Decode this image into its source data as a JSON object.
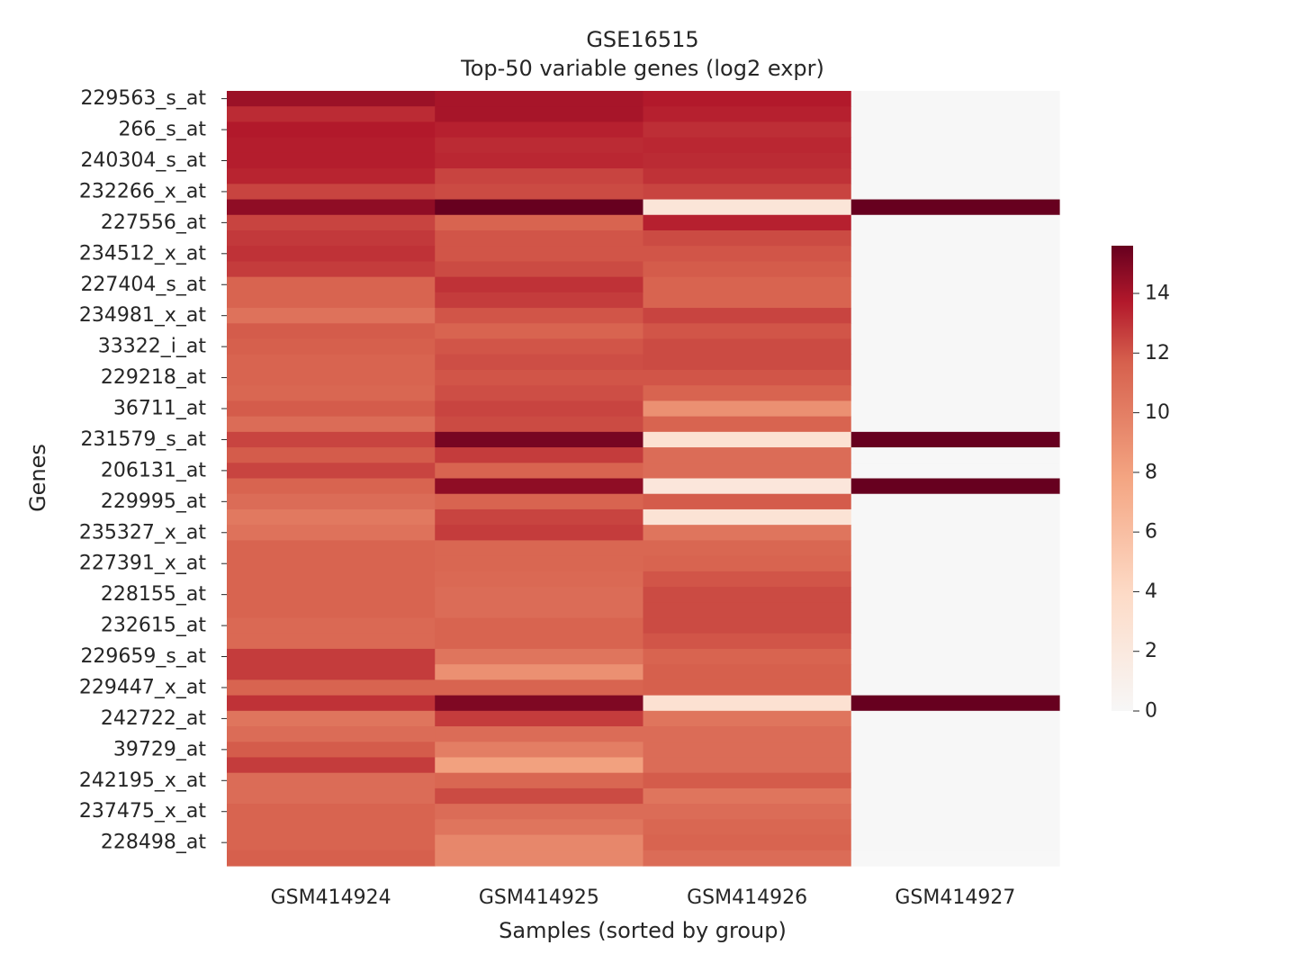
{
  "chart_data": {
    "type": "heatmap",
    "title": "GSE16515",
    "subtitle": "Top-50 variable genes (log2 expr)",
    "xlabel": "Samples (sorted by group)",
    "ylabel": "Genes",
    "columns": [
      "GSM414924",
      "GSM414925",
      "GSM414926",
      "GSM414927"
    ],
    "row_tick_labels": [
      "229563_s_at",
      "266_s_at",
      "240304_s_at",
      "232266_x_at",
      "227556_at",
      "234512_x_at",
      "227404_s_at",
      "234981_x_at",
      "33322_i_at",
      "229218_at",
      "36711_at",
      "231579_s_at",
      "206131_at",
      "229995_at",
      "235327_x_at",
      "227391_x_at",
      "228155_at",
      "232615_at",
      "229659_s_at",
      "229447_x_at",
      "242722_at",
      "39729_at",
      "242195_x_at",
      "237475_x_at",
      "228498_at"
    ],
    "row_count": 50,
    "values": [
      [
        14.3,
        14.0,
        13.7,
        0.0
      ],
      [
        13.2,
        14.0,
        13.5,
        0.0
      ],
      [
        13.7,
        13.5,
        13.1,
        0.0
      ],
      [
        13.6,
        13.2,
        13.3,
        0.0
      ],
      [
        13.6,
        13.3,
        13.2,
        0.0
      ],
      [
        13.4,
        12.5,
        13.0,
        0.0
      ],
      [
        12.5,
        12.3,
        12.5,
        0.0
      ],
      [
        14.6,
        15.6,
        2.5,
        15.6
      ],
      [
        12.5,
        11.5,
        13.5,
        0.0
      ],
      [
        12.8,
        12.0,
        12.3,
        0.0
      ],
      [
        13.0,
        12.0,
        12.0,
        0.0
      ],
      [
        12.7,
        12.3,
        11.8,
        0.0
      ],
      [
        11.5,
        13.0,
        11.5,
        0.0
      ],
      [
        11.5,
        12.7,
        11.5,
        0.0
      ],
      [
        10.7,
        12.0,
        12.5,
        0.0
      ],
      [
        11.8,
        11.5,
        12.0,
        0.0
      ],
      [
        11.7,
        12.0,
        12.3,
        0.0
      ],
      [
        11.5,
        12.2,
        12.3,
        0.0
      ],
      [
        11.5,
        12.0,
        12.0,
        0.0
      ],
      [
        11.3,
        12.2,
        11.5,
        0.0
      ],
      [
        11.8,
        12.5,
        9.0,
        0.0
      ],
      [
        11.0,
        12.3,
        11.5,
        0.0
      ],
      [
        12.5,
        15.2,
        3.0,
        15.6
      ],
      [
        11.8,
        12.7,
        11.0,
        0.0
      ],
      [
        12.5,
        11.5,
        11.0,
        0.0
      ],
      [
        11.5,
        14.6,
        2.3,
        15.6
      ],
      [
        11.0,
        11.5,
        11.8,
        0.0
      ],
      [
        10.3,
        12.5,
        2.8,
        0.0
      ],
      [
        10.7,
        12.7,
        10.5,
        0.0
      ],
      [
        11.5,
        11.3,
        11.3,
        0.0
      ],
      [
        11.5,
        11.3,
        11.5,
        0.0
      ],
      [
        11.5,
        11.2,
        12.0,
        0.0
      ],
      [
        11.5,
        11.0,
        12.3,
        0.0
      ],
      [
        11.5,
        11.0,
        12.3,
        0.0
      ],
      [
        11.2,
        11.5,
        12.3,
        0.0
      ],
      [
        11.2,
        11.5,
        12.0,
        0.0
      ],
      [
        12.7,
        10.5,
        11.5,
        0.0
      ],
      [
        12.7,
        9.0,
        11.7,
        0.0
      ],
      [
        11.5,
        11.5,
        11.7,
        0.0
      ],
      [
        13.0,
        15.0,
        3.0,
        15.6
      ],
      [
        10.5,
        12.7,
        10.5,
        0.0
      ],
      [
        11.0,
        11.0,
        11.0,
        0.0
      ],
      [
        11.8,
        10.0,
        11.0,
        0.0
      ],
      [
        12.7,
        8.0,
        11.0,
        0.0
      ],
      [
        11.0,
        11.3,
        11.8,
        0.0
      ],
      [
        11.0,
        12.3,
        10.5,
        0.0
      ],
      [
        11.5,
        11.0,
        11.0,
        0.0
      ],
      [
        11.5,
        10.5,
        11.3,
        0.0
      ],
      [
        11.5,
        9.5,
        11.5,
        0.0
      ],
      [
        11.7,
        9.5,
        11.0,
        0.0
      ]
    ],
    "colorbar": {
      "ticks": [
        0,
        2,
        4,
        6,
        8,
        10,
        12,
        14
      ],
      "range": [
        0,
        15.6
      ],
      "colormap": "RdBu_r (upper half)"
    }
  }
}
